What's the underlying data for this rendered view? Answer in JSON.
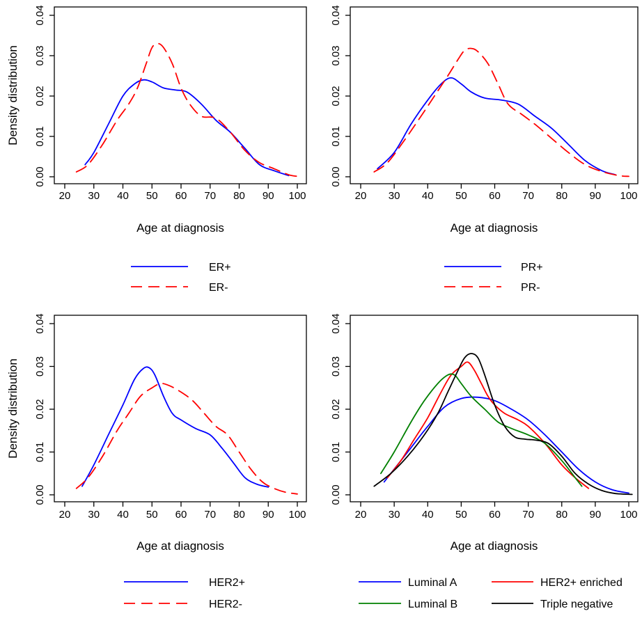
{
  "chart_data": [
    {
      "type": "line",
      "xlabel": "Age at diagnosis",
      "ylabel": "Density distribution",
      "xlim": [
        18,
        103
      ],
      "ylim": [
        -0.002,
        0.041
      ],
      "x_ticks": [
        20,
        30,
        40,
        50,
        60,
        70,
        80,
        90,
        100
      ],
      "y_ticks": [
        0.0,
        0.01,
        0.02,
        0.03,
        0.04
      ],
      "y_tick_labels": [
        "0.00",
        "0.01",
        "0.02",
        "0.03",
        "0.04"
      ],
      "legend_position": "below",
      "series": [
        {
          "name": "ER+",
          "color": "#0000ff",
          "dash": "solid",
          "x": [
            27,
            30,
            35,
            40,
            44,
            47,
            50,
            54,
            58,
            62,
            67,
            72,
            77,
            82,
            87,
            92,
            97
          ],
          "y": [
            0.003,
            0.006,
            0.013,
            0.02,
            0.023,
            0.024,
            0.0235,
            0.022,
            0.0215,
            0.021,
            0.018,
            0.014,
            0.011,
            0.007,
            0.003,
            0.0015,
            0.0003
          ]
        },
        {
          "name": "ER-",
          "color": "#ff0000",
          "dash": "dashed",
          "x": [
            24,
            28,
            33,
            38,
            42,
            45,
            48,
            50,
            52,
            54,
            57,
            60,
            63,
            67,
            72,
            77,
            82,
            87,
            92,
            97,
            100
          ],
          "y": [
            0.0012,
            0.003,
            0.008,
            0.014,
            0.018,
            0.022,
            0.028,
            0.032,
            0.033,
            0.032,
            0.028,
            0.022,
            0.018,
            0.015,
            0.0145,
            0.011,
            0.0065,
            0.0035,
            0.002,
            0.0005,
            0.0001
          ]
        }
      ]
    },
    {
      "type": "line",
      "xlabel": "Age at diagnosis",
      "ylabel": "",
      "xlim": [
        18,
        103
      ],
      "ylim": [
        -0.002,
        0.041
      ],
      "x_ticks": [
        20,
        30,
        40,
        50,
        60,
        70,
        80,
        90,
        100
      ],
      "y_ticks": [
        0.0,
        0.01,
        0.02,
        0.03,
        0.04
      ],
      "y_tick_labels": [
        "0.00",
        "0.01",
        "0.02",
        "0.03",
        "0.04"
      ],
      "legend_position": "below",
      "series": [
        {
          "name": "PR+",
          "color": "#0000ff",
          "dash": "solid",
          "x": [
            25,
            30,
            35,
            40,
            44,
            47,
            50,
            53,
            57,
            62,
            67,
            72,
            77,
            82,
            87,
            92,
            96
          ],
          "y": [
            0.002,
            0.006,
            0.013,
            0.019,
            0.023,
            0.0245,
            0.023,
            0.021,
            0.0195,
            0.019,
            0.018,
            0.015,
            0.012,
            0.008,
            0.004,
            0.0015,
            0.0005
          ]
        },
        {
          "name": "PR-",
          "color": "#ff0000",
          "dash": "dashed",
          "x": [
            24,
            28,
            33,
            38,
            42,
            46,
            49,
            51,
            53,
            55,
            58,
            61,
            64,
            68,
            72,
            77,
            82,
            87,
            92,
            97,
            100
          ],
          "y": [
            0.0012,
            0.0035,
            0.009,
            0.015,
            0.02,
            0.025,
            0.029,
            0.0313,
            0.0318,
            0.031,
            0.028,
            0.023,
            0.018,
            0.0155,
            0.013,
            0.0095,
            0.006,
            0.003,
            0.0013,
            0.0003,
            0.0001
          ]
        }
      ]
    },
    {
      "type": "line",
      "xlabel": "Age at diagnosis",
      "ylabel": "Density distribution",
      "xlim": [
        18,
        103
      ],
      "ylim": [
        -0.002,
        0.041
      ],
      "x_ticks": [
        20,
        30,
        40,
        50,
        60,
        70,
        80,
        90,
        100
      ],
      "y_ticks": [
        0.0,
        0.01,
        0.02,
        0.03,
        0.04
      ],
      "y_tick_labels": [
        "0.00",
        "0.01",
        "0.02",
        "0.03",
        "0.04"
      ],
      "legend_position": "below",
      "series": [
        {
          "name": "HER2+",
          "color": "#0000ff",
          "dash": "solid",
          "x": [
            26,
            30,
            35,
            40,
            44,
            47,
            49,
            51,
            54,
            57,
            60,
            65,
            70,
            74,
            78,
            82,
            86,
            90
          ],
          "y": [
            0.002,
            0.007,
            0.014,
            0.021,
            0.027,
            0.0295,
            0.0297,
            0.028,
            0.023,
            0.019,
            0.0175,
            0.0155,
            0.014,
            0.011,
            0.0075,
            0.004,
            0.0025,
            0.0018
          ]
        },
        {
          "name": "HER2-",
          "color": "#ff0000",
          "dash": "dashed",
          "x": [
            24,
            28,
            33,
            38,
            42,
            46,
            50,
            53,
            56,
            60,
            64,
            68,
            72,
            76,
            80,
            84,
            88,
            92,
            96,
            100
          ],
          "y": [
            0.0015,
            0.004,
            0.009,
            0.015,
            0.019,
            0.023,
            0.025,
            0.026,
            0.0255,
            0.024,
            0.022,
            0.019,
            0.016,
            0.014,
            0.01,
            0.006,
            0.003,
            0.0015,
            0.0006,
            0.0002
          ]
        }
      ]
    },
    {
      "type": "line",
      "xlabel": "Age at diagnosis",
      "ylabel": "",
      "xlim": [
        18,
        103
      ],
      "ylim": [
        -0.002,
        0.041
      ],
      "x_ticks": [
        20,
        30,
        40,
        50,
        60,
        70,
        80,
        90,
        100
      ],
      "y_ticks": [
        0.0,
        0.01,
        0.02,
        0.03,
        0.04
      ],
      "y_tick_labels": [
        "0.00",
        "0.01",
        "0.02",
        "0.03",
        "0.04"
      ],
      "legend_position": "below",
      "series": [
        {
          "name": "Luminal A",
          "color": "#0000ff",
          "dash": "solid",
          "x": [
            27,
            30,
            35,
            40,
            45,
            50,
            55,
            60,
            65,
            70,
            75,
            80,
            85,
            90,
            95,
            100
          ],
          "y": [
            0.003,
            0.006,
            0.011,
            0.016,
            0.0205,
            0.0225,
            0.0228,
            0.022,
            0.02,
            0.0175,
            0.014,
            0.01,
            0.006,
            0.003,
            0.0012,
            0.0004
          ]
        },
        {
          "name": "HER2+ enriched",
          "color": "#ff0000",
          "dash": "solid",
          "x": [
            28,
            32,
            36,
            40,
            44,
            47,
            50,
            52,
            54,
            56,
            58,
            60,
            63,
            67,
            70,
            75,
            80,
            84,
            88
          ],
          "y": [
            0.004,
            0.008,
            0.013,
            0.018,
            0.024,
            0.028,
            0.03,
            0.031,
            0.029,
            0.026,
            0.023,
            0.021,
            0.019,
            0.0175,
            0.016,
            0.012,
            0.007,
            0.004,
            0.0015
          ]
        },
        {
          "name": "Luminal B",
          "color": "#008000",
          "dash": "solid",
          "x": [
            26,
            30,
            35,
            39,
            43,
            46,
            48,
            50,
            53,
            57,
            61,
            65,
            70,
            75,
            80,
            84,
            86
          ],
          "y": [
            0.005,
            0.01,
            0.017,
            0.022,
            0.026,
            0.028,
            0.028,
            0.026,
            0.023,
            0.02,
            0.017,
            0.0155,
            0.014,
            0.012,
            0.008,
            0.004,
            0.002
          ]
        },
        {
          "name": "Triple negative",
          "color": "#000000",
          "dash": "solid",
          "x": [
            24,
            29,
            34,
            39,
            43,
            46,
            49,
            51,
            53,
            55,
            57,
            60,
            63,
            66,
            69,
            72,
            76,
            80,
            84,
            88,
            92,
            96,
            101
          ],
          "y": [
            0.002,
            0.005,
            0.009,
            0.014,
            0.019,
            0.024,
            0.029,
            0.032,
            0.033,
            0.032,
            0.028,
            0.021,
            0.016,
            0.0135,
            0.013,
            0.0128,
            0.012,
            0.009,
            0.005,
            0.0025,
            0.001,
            0.0003,
            0.0001
          ]
        }
      ]
    }
  ]
}
